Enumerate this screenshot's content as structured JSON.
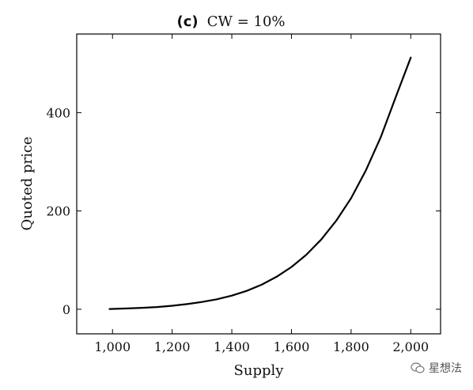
{
  "chart_data": {
    "type": "line",
    "title_prefix": "(c)",
    "title_main": "CW = 10%",
    "xlabel": "Supply",
    "ylabel": "Quoted price",
    "xlim": [
      880,
      2100
    ],
    "ylim": [
      -50,
      560
    ],
    "x_ticks": [
      1000,
      1200,
      1400,
      1600,
      1800,
      2000
    ],
    "x_tick_labels": [
      "1,000",
      "1,200",
      "1,400",
      "1,600",
      "1,800",
      "2,000"
    ],
    "y_ticks": [
      0,
      200,
      400
    ],
    "y_tick_labels": [
      "0",
      "200",
      "400"
    ],
    "grid": false,
    "series": [
      {
        "color": "#000000",
        "x": [
          990,
          1050,
          1100,
          1150,
          1200,
          1250,
          1300,
          1350,
          1400,
          1450,
          1500,
          1550,
          1600,
          1650,
          1700,
          1750,
          1800,
          1850,
          1900,
          1950,
          2000
        ],
        "y": [
          0.5,
          1.6,
          2.9,
          4.6,
          7.2,
          10.5,
          14.8,
          20.4,
          27.8,
          37.4,
          50,
          66,
          86,
          111,
          142,
          180,
          226,
          283,
          351,
          432,
          512
        ]
      }
    ]
  },
  "watermark": {
    "text": "星想法",
    "icon": "wechat-icon"
  }
}
